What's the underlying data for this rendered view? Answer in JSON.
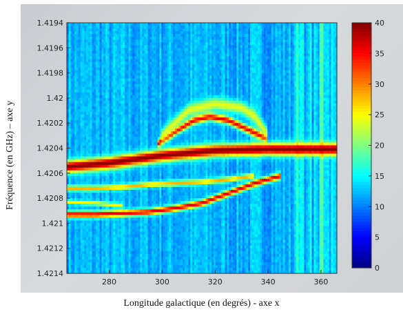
{
  "chart_data": {
    "type": "heatmap",
    "title": "",
    "xlabel": "Longitude galactique (en degrés) - axe x",
    "ylabel": "Fréquence (en GHz) – axe y",
    "xlim": [
      264,
      366
    ],
    "ylim": [
      1.4194,
      1.4214
    ],
    "y_inverted": true,
    "x_ticks": [
      280,
      300,
      320,
      340,
      360
    ],
    "x_tick_labels": [
      "280",
      "300",
      "320",
      "340",
      "360"
    ],
    "y_ticks": [
      1.4194,
      1.4196,
      1.4198,
      1.42,
      1.4202,
      1.4204,
      1.4206,
      1.4208,
      1.421,
      1.4212,
      1.4214
    ],
    "y_tick_labels": [
      "1.4194",
      "1.4196",
      "1.4198",
      "1.42",
      "1.4202",
      "1.4204",
      "1.4206",
      "1.4208",
      "1.421",
      "1.4212",
      "1.4214"
    ],
    "colorbar": {
      "min": 0,
      "max": 40,
      "ticks": [
        0,
        5,
        10,
        15,
        20,
        25,
        30,
        35,
        40
      ],
      "tick_labels": [
        "0",
        "5",
        "10",
        "15",
        "20",
        "25",
        "30",
        "35",
        "40"
      ],
      "colormap": "jet"
    },
    "background_value": 12,
    "features": [
      {
        "kind": "main-band",
        "x": [
          264,
          280,
          300,
          320,
          340,
          360,
          366
        ],
        "y": [
          1.42055,
          1.42052,
          1.42046,
          1.42042,
          1.42041,
          1.42041,
          1.42041
        ],
        "width": 0.00011,
        "value": 40
      },
      {
        "kind": "upper-arm",
        "x": [
          298,
          305,
          312,
          318,
          325,
          332,
          340
        ],
        "y": [
          1.42037,
          1.42027,
          1.42018,
          1.42015,
          1.42018,
          1.42025,
          1.42033
        ],
        "width": 7e-05,
        "value": 36
      },
      {
        "kind": "upper-halo",
        "x": [
          300,
          310,
          320,
          330,
          335,
          340
        ],
        "y": [
          1.4203,
          1.4201,
          1.42005,
          1.42008,
          1.42015,
          1.4203
        ],
        "width": 0.00012,
        "value": 24
      },
      {
        "kind": "lower-arm-1",
        "x": [
          264,
          275,
          285,
          295,
          305,
          315,
          325,
          335
        ],
        "y": [
          1.42072,
          1.42072,
          1.42071,
          1.42069,
          1.42068,
          1.42067,
          1.42065,
          1.42062
        ],
        "width": 5e-05,
        "value": 28
      },
      {
        "kind": "lower-arm-2",
        "x": [
          264,
          275,
          285,
          295,
          305,
          315,
          325,
          335,
          345
        ],
        "y": [
          1.42093,
          1.42093,
          1.42092,
          1.42091,
          1.42088,
          1.42084,
          1.42076,
          1.42068,
          1.42062
        ],
        "width": 6e-05,
        "value": 36
      },
      {
        "kind": "lower-arm-3",
        "x": [
          264,
          275,
          285
        ],
        "y": [
          1.42083,
          1.42084,
          1.42086
        ],
        "width": 4e-05,
        "value": 25
      }
    ],
    "grid": false,
    "legend": "none"
  }
}
